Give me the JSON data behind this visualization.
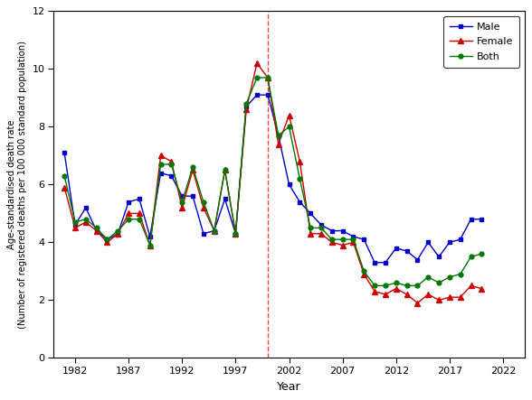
{
  "years": [
    1981,
    1982,
    1983,
    1984,
    1985,
    1986,
    1987,
    1988,
    1989,
    1990,
    1991,
    1992,
    1993,
    1994,
    1995,
    1996,
    1997,
    1998,
    1999,
    2000,
    2001,
    2002,
    2003,
    2004,
    2005,
    2006,
    2007,
    2008,
    2009,
    2010,
    2011,
    2012,
    2013,
    2014,
    2015,
    2016,
    2017,
    2018,
    2019,
    2020
  ],
  "male": [
    7.1,
    4.6,
    5.2,
    4.4,
    4.1,
    4.3,
    5.4,
    5.5,
    4.2,
    6.4,
    6.3,
    5.6,
    5.6,
    4.3,
    4.4,
    5.5,
    4.3,
    8.7,
    9.1,
    9.1,
    7.7,
    6.0,
    5.4,
    5.0,
    4.6,
    4.4,
    4.4,
    4.2,
    4.1,
    3.3,
    3.3,
    3.8,
    3.7,
    3.4,
    4.0,
    3.5,
    4.0,
    4.1,
    4.8,
    4.8
  ],
  "female": [
    5.9,
    4.5,
    4.7,
    4.4,
    4.0,
    4.3,
    5.0,
    5.0,
    3.9,
    7.0,
    6.8,
    5.2,
    6.5,
    5.2,
    4.4,
    6.5,
    4.3,
    8.6,
    10.2,
    9.7,
    7.4,
    8.4,
    6.8,
    4.3,
    4.3,
    4.0,
    3.9,
    4.0,
    2.9,
    2.3,
    2.2,
    2.4,
    2.2,
    1.9,
    2.2,
    2.0,
    2.1,
    2.1,
    2.5,
    2.4
  ],
  "both": [
    6.3,
    4.7,
    4.8,
    4.5,
    4.1,
    4.4,
    4.8,
    4.8,
    3.9,
    6.7,
    6.7,
    5.4,
    6.6,
    5.4,
    4.4,
    6.5,
    4.3,
    8.8,
    9.7,
    9.7,
    7.7,
    8.0,
    6.2,
    4.5,
    4.5,
    4.1,
    4.1,
    4.1,
    3.0,
    2.5,
    2.5,
    2.6,
    2.5,
    2.5,
    2.8,
    2.6,
    2.8,
    2.9,
    3.5,
    3.6
  ],
  "vline_x": 2000,
  "male_color": "#0000CC",
  "female_color": "#CC0000",
  "both_color": "#007700",
  "vline_color": "#FF4444",
  "ylabel_line1": "Age-standardised death rate",
  "ylabel_line2": "(Number of registered deaths per 100 000 standard population)",
  "xlabel": "Year",
  "ylim": [
    0,
    12
  ],
  "yticks": [
    0,
    2,
    4,
    6,
    8,
    10,
    12
  ],
  "xticks": [
    1982,
    1987,
    1992,
    1997,
    2002,
    2007,
    2012,
    2017,
    2022
  ],
  "xlim_left": 1980,
  "xlim_right": 2024
}
